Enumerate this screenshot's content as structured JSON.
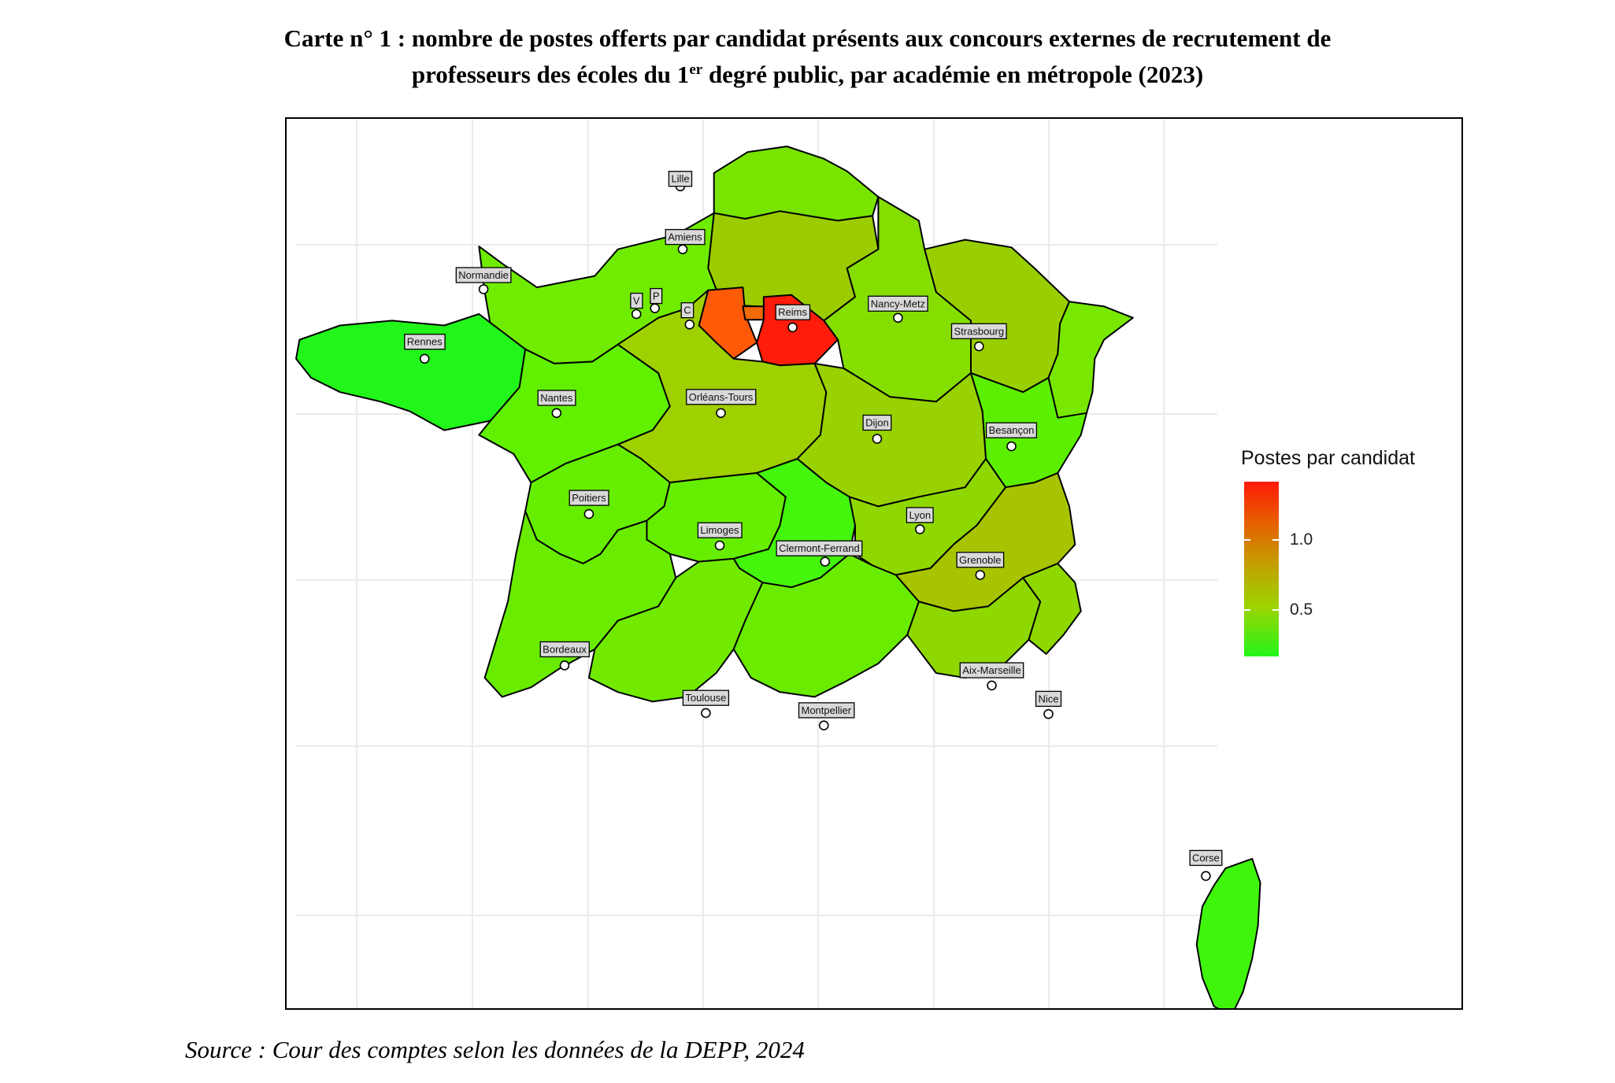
{
  "title": {
    "line1": "Carte n° 1 : nombre de postes offerts par candidat présents aux concours externes de recrutement de",
    "line2_before": "professeurs des écoles du 1",
    "line2_sup": "er",
    "line2_after": " degré public, par académie en métropole (2023)"
  },
  "source": "Source : Cour des comptes selon les données de la DEPP, 2024",
  "legend": {
    "title": "Postes par candidat",
    "scale_min_color": "#22f51a",
    "scale_max_color": "#ff1a0a",
    "ticks": [
      {
        "label": "1.0",
        "value": 1.0
      },
      {
        "label": "0.5",
        "value": 0.5
      }
    ]
  },
  "colors": {
    "border": "#000000",
    "label_bg": "#d9d9d9",
    "grid": "#ebebeb",
    "green_bright": "#22f51a",
    "green": "#5cf000",
    "green_light": "#74e800",
    "yellow_green": "#8ed400",
    "olive": "#a5c800",
    "orange": "#ff5a08",
    "red": "#ff1c0a"
  },
  "regions": [
    {
      "name": "Lille",
      "label": "Lille",
      "fill": "#79e400"
    },
    {
      "name": "Amiens",
      "label": "Amiens",
      "fill": "#9ccc00"
    },
    {
      "name": "Normandie",
      "label": "Normandie",
      "fill": "#70ec00"
    },
    {
      "name": "Reims",
      "label": "Reims",
      "fill": "#86de00"
    },
    {
      "name": "Nancy-Metz",
      "label": "Nancy-Metz",
      "fill": "#99cf00"
    },
    {
      "name": "Strasbourg",
      "label": "Strasbourg",
      "fill": "#78e800"
    },
    {
      "name": "Versailles",
      "label": "V",
      "fill": "#ff5a08"
    },
    {
      "name": "Paris",
      "label": "P",
      "fill": "#f26a05"
    },
    {
      "name": "Créteil",
      "label": "C",
      "fill": "#ff1c0a"
    },
    {
      "name": "Rennes",
      "label": "Rennes",
      "fill": "#22f51a"
    },
    {
      "name": "Nantes",
      "label": "Nantes",
      "fill": "#60f000"
    },
    {
      "name": "Orléans-Tours",
      "label": "Orléans-Tours",
      "fill": "#9fd000"
    },
    {
      "name": "Dijon",
      "label": "Dijon",
      "fill": "#98d200"
    },
    {
      "name": "Besançon",
      "label": "Besançon",
      "fill": "#5cf000"
    },
    {
      "name": "Poitiers",
      "label": "Poitiers",
      "fill": "#66ee00"
    },
    {
      "name": "Limoges",
      "label": "Limoges",
      "fill": "#66ee00"
    },
    {
      "name": "Clermont-Ferrand",
      "label": "Clermont-Ferrand",
      "fill": "#44f50c"
    },
    {
      "name": "Lyon",
      "label": "Lyon",
      "fill": "#8ed800"
    },
    {
      "name": "Grenoble",
      "label": "Grenoble",
      "fill": "#a8c400"
    },
    {
      "name": "Bordeaux",
      "label": "Bordeaux",
      "fill": "#6aec00"
    },
    {
      "name": "Toulouse",
      "label": "Toulouse",
      "fill": "#72ea00"
    },
    {
      "name": "Montpellier",
      "label": "Montpellier",
      "fill": "#6aec00"
    },
    {
      "name": "Aix-Marseille",
      "label": "Aix-Marseille",
      "fill": "#8ed800"
    },
    {
      "name": "Nice",
      "label": "Nice",
      "fill": "#8ed800"
    },
    {
      "name": "Corse",
      "label": "Corse",
      "fill": "#40f50c"
    }
  ]
}
